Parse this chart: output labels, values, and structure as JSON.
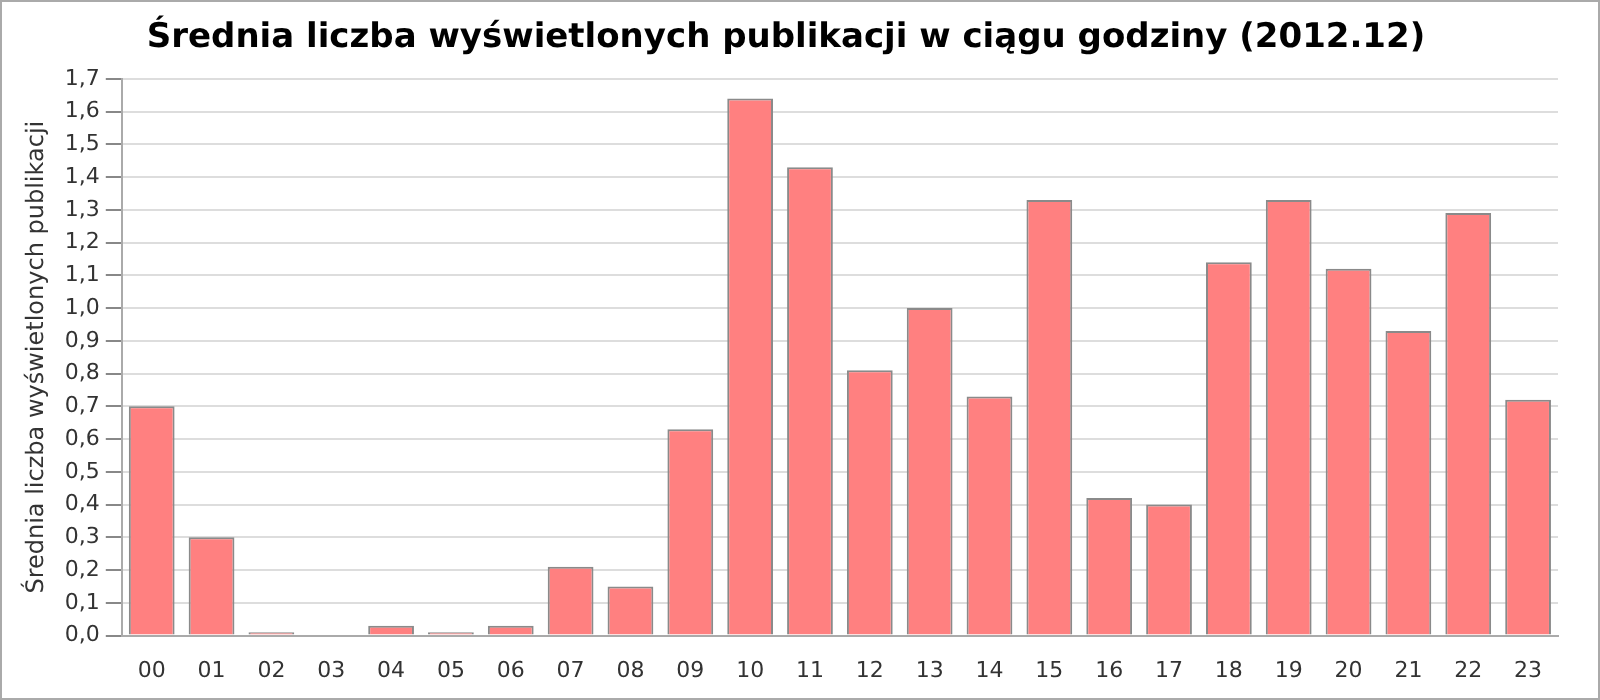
{
  "chart_data": {
    "type": "bar",
    "title": "Średnia liczba wyświetlonych publikacji w ciągu godziny (2012.12)",
    "ylabel": "Średnia liczba wyświetlonych publikacji",
    "categories": [
      "00",
      "01",
      "02",
      "03",
      "04",
      "05",
      "06",
      "07",
      "08",
      "09",
      "10",
      "11",
      "12",
      "13",
      "14",
      "15",
      "16",
      "17",
      "18",
      "19",
      "20",
      "21",
      "22",
      "23"
    ],
    "values": [
      0.7,
      0.3,
      0.01,
      0.0,
      0.03,
      0.01,
      0.03,
      0.21,
      0.15,
      0.63,
      1.64,
      1.43,
      0.81,
      1.0,
      0.73,
      1.33,
      0.42,
      0.4,
      1.14,
      1.33,
      1.12,
      0.93,
      1.29,
      0.72
    ],
    "color": "#ff8080",
    "ylim": [
      0,
      1.7
    ],
    "yticks": [
      {
        "value": 0,
        "label": "0,0"
      },
      {
        "value": 0.1,
        "label": "0,1"
      },
      {
        "value": 0.2,
        "label": "0,2"
      },
      {
        "value": 0.3,
        "label": "0,3"
      },
      {
        "value": 0.4,
        "label": "0,4"
      },
      {
        "value": 0.5,
        "label": "0,5"
      },
      {
        "value": 0.6,
        "label": "0,6"
      },
      {
        "value": 0.7,
        "label": "0,7"
      },
      {
        "value": 0.8,
        "label": "0,8"
      },
      {
        "value": 0.9,
        "label": "0,9"
      },
      {
        "value": 1.0,
        "label": "1,0"
      },
      {
        "value": 1.1,
        "label": "1,1"
      },
      {
        "value": 1.2,
        "label": "1,2"
      },
      {
        "value": 1.3,
        "label": "1,3"
      },
      {
        "value": 1.4,
        "label": "1,4"
      },
      {
        "value": 1.5,
        "label": "1,5"
      },
      {
        "value": 1.6,
        "label": "1,6"
      },
      {
        "value": 1.7,
        "label": "1,7"
      }
    ],
    "grid": "y"
  }
}
